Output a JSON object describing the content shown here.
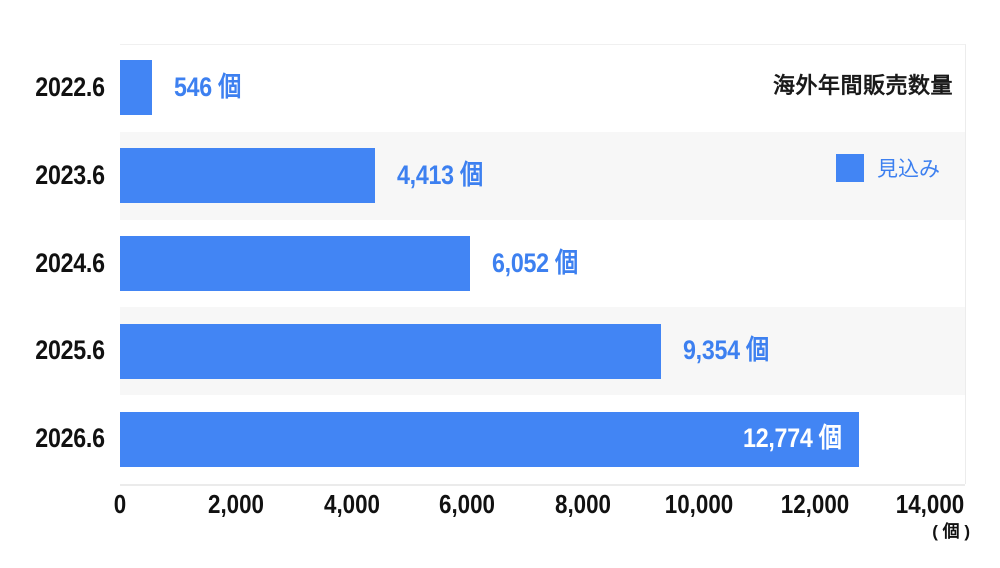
{
  "chart_data": {
    "type": "bar",
    "orientation": "horizontal",
    "title": "海外年間販売数量",
    "legend": {
      "position": "top-right",
      "entries": [
        {
          "label": "見込み",
          "color": "#4285f4"
        }
      ]
    },
    "categories": [
      "2022.6",
      "2023.6",
      "2024.6",
      "2025.6",
      "2026.6"
    ],
    "series": [
      {
        "name": "見込み",
        "values": [
          546,
          4413,
          6052,
          9354,
          12774
        ]
      }
    ],
    "value_labels": [
      "546 個",
      "4,413 個",
      "6,052 個",
      "9,354 個",
      "12,774 個"
    ],
    "xticks": [
      0,
      2000,
      4000,
      6000,
      8000,
      10000,
      12000,
      14000
    ],
    "xtick_labels": [
      "0",
      "2,000",
      "4,000",
      "6,000",
      "8,000",
      "10,000",
      "12,000",
      "14,000"
    ],
    "xlim": [
      0,
      14600
    ],
    "xlabel": "( 個 )",
    "grid": "off",
    "row_bands": "alternating",
    "last_value_label_inside": true
  },
  "colors": {
    "bar": "#4285f4",
    "value_text": "#3d80f0",
    "in_bar_text": "#ffffff",
    "band": "#f7f7f7",
    "axis_line": "#ebebeb",
    "axis_text": "#111111",
    "title_text": "#1a1a1a"
  }
}
